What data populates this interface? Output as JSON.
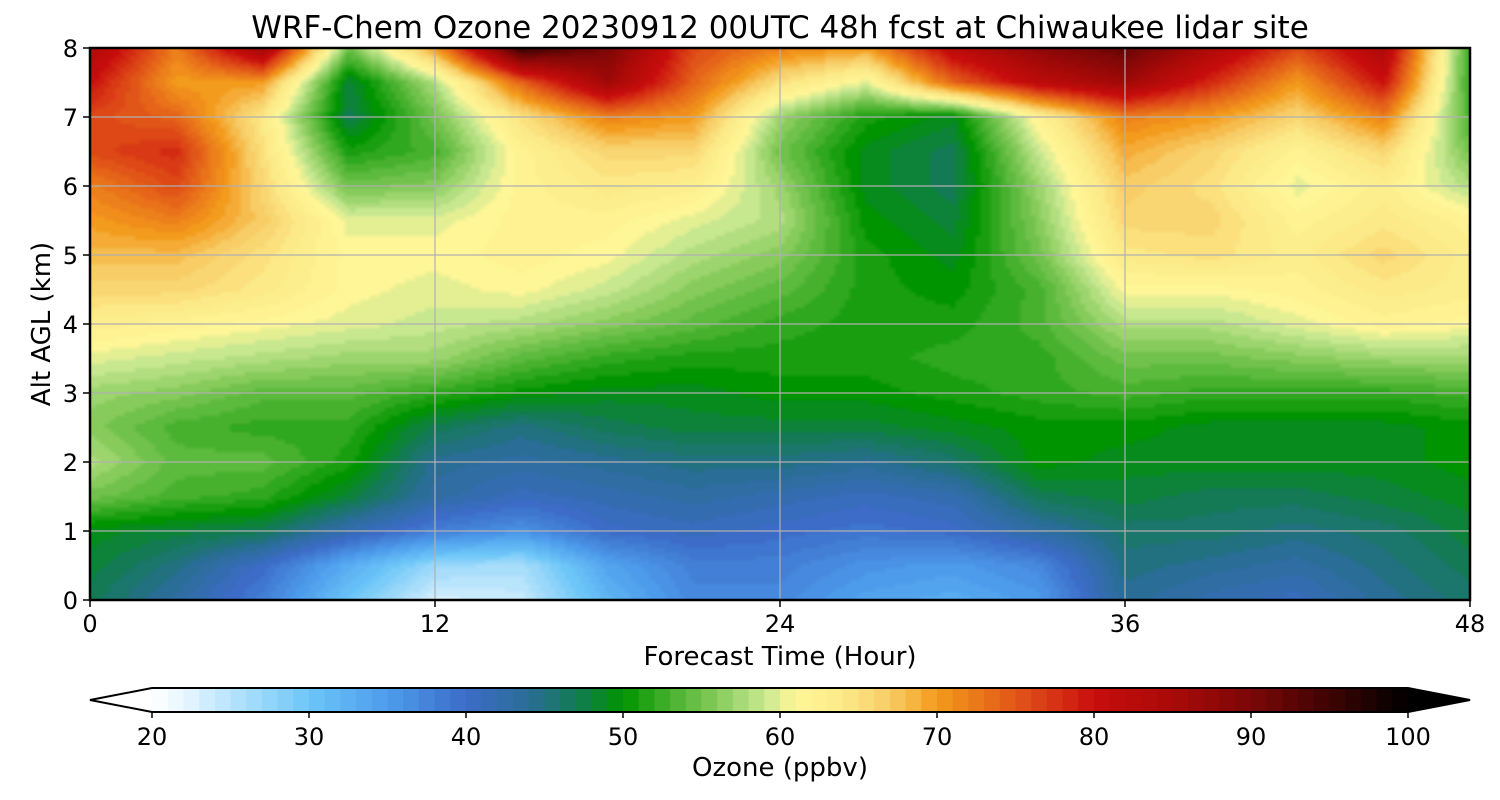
{
  "chart_data": {
    "type": "heatmap",
    "title": "WRF-Chem Ozone  20230912 00UTC 48h fcst at Chiwaukee lidar site",
    "xlabel": "Forecast Time (Hour)",
    "ylabel": "Alt AGL (km)",
    "xlim": [
      0,
      48
    ],
    "ylim": [
      0,
      8
    ],
    "xticks": [
      "0",
      "12",
      "24",
      "36",
      "48"
    ],
    "yticks": [
      "0",
      "1",
      "2",
      "3",
      "4",
      "5",
      "6",
      "7",
      "8"
    ],
    "grid": true,
    "x": [
      0,
      3,
      6,
      9,
      12,
      15,
      18,
      21,
      24,
      27,
      30,
      33,
      36,
      39,
      42,
      45,
      48
    ],
    "y": [
      0,
      0.5,
      1,
      1.5,
      2,
      2.5,
      3,
      3.5,
      4,
      4.5,
      5,
      5.5,
      6,
      6.5,
      7,
      7.5,
      8
    ],
    "z": [
      [
        47,
        43,
        38,
        30,
        23,
        24,
        32,
        37,
        37,
        34,
        33,
        35,
        44,
        42,
        41,
        44,
        46
      ],
      [
        48,
        45,
        40,
        33,
        27,
        26,
        34,
        38,
        38,
        36,
        35,
        37,
        45,
        44,
        43,
        45,
        47
      ],
      [
        49,
        48,
        47,
        42,
        38,
        36,
        40,
        41,
        40,
        39,
        40,
        43,
        46,
        46,
        45,
        46,
        48
      ],
      [
        55,
        53,
        52,
        48,
        43,
        41,
        42,
        43,
        42,
        41,
        42,
        47,
        48,
        47,
        47,
        48,
        49
      ],
      [
        58,
        54,
        54,
        51,
        44,
        43,
        44,
        45,
        45,
        44,
        46,
        50,
        49,
        49,
        49,
        49,
        50
      ],
      [
        56,
        53,
        52,
        52,
        47,
        45,
        47,
        48,
        48,
        48,
        49,
        50,
        50,
        49,
        49,
        49,
        50
      ],
      [
        57,
        56,
        54,
        54,
        52,
        50,
        49,
        49,
        50,
        50,
        51,
        52,
        53,
        52,
        52,
        52,
        53
      ],
      [
        60,
        59,
        58,
        57,
        57,
        54,
        52,
        51,
        51,
        51,
        52,
        52,
        55,
        55,
        56,
        57,
        57
      ],
      [
        63,
        62,
        61,
        60,
        59,
        58,
        56,
        54,
        52,
        51,
        51,
        53,
        58,
        58,
        60,
        62,
        61
      ],
      [
        66,
        66,
        64,
        61,
        60,
        61,
        59,
        56,
        54,
        51,
        50,
        53,
        61,
        61,
        62,
        64,
        63
      ],
      [
        68,
        68,
        65,
        61,
        61,
        62,
        61,
        58,
        56,
        51,
        49,
        55,
        64,
        65,
        63,
        66,
        63
      ],
      [
        70,
        72,
        67,
        60,
        60,
        62,
        62,
        60,
        58,
        50,
        48,
        56,
        66,
        66,
        62,
        64,
        62
      ],
      [
        72,
        76,
        66,
        55,
        56,
        62,
        64,
        63,
        57,
        49,
        47,
        57,
        67,
        65,
        60,
        63,
        58
      ],
      [
        76,
        78,
        65,
        51,
        53,
        62,
        66,
        66,
        55,
        49,
        47,
        59,
        69,
        66,
        62,
        66,
        55
      ],
      [
        76,
        74,
        64,
        47,
        55,
        65,
        72,
        70,
        57,
        51,
        49,
        62,
        72,
        70,
        66,
        72,
        53
      ],
      [
        80,
        70,
        70,
        48,
        58,
        74,
        86,
        74,
        65,
        60,
        74,
        82,
        86,
        78,
        70,
        80,
        52
      ],
      [
        84,
        72,
        86,
        55,
        70,
        96,
        90,
        76,
        72,
        70,
        82,
        88,
        92,
        84,
        76,
        84,
        52
      ]
    ],
    "colorbar": {
      "label": "Ozone  (ppbv)",
      "min": 20,
      "max": 100,
      "ticks": [
        "20",
        "30",
        "40",
        "50",
        "60",
        "70",
        "80",
        "90",
        "100"
      ],
      "extend": "both",
      "stops": [
        [
          20,
          "#ffffff"
        ],
        [
          22,
          "#e8f6ff"
        ],
        [
          25,
          "#b8e4fc"
        ],
        [
          30,
          "#6cc6f8"
        ],
        [
          35,
          "#4d9cec"
        ],
        [
          40,
          "#3c6cc8"
        ],
        [
          44,
          "#2a6d96"
        ],
        [
          47,
          "#137a55"
        ],
        [
          50,
          "#009400"
        ],
        [
          53,
          "#47b12d"
        ],
        [
          56,
          "#86cb5c"
        ],
        [
          59,
          "#c8e890"
        ],
        [
          61,
          "#fff697"
        ],
        [
          64,
          "#fcea88"
        ],
        [
          67,
          "#f8cc66"
        ],
        [
          70,
          "#f39b1c"
        ],
        [
          74,
          "#e56419"
        ],
        [
          77,
          "#d93a15"
        ],
        [
          80,
          "#c80d0d"
        ],
        [
          85,
          "#a80a08"
        ],
        [
          90,
          "#7c0707"
        ],
        [
          95,
          "#3d0303"
        ],
        [
          100,
          "#000000"
        ]
      ]
    }
  }
}
